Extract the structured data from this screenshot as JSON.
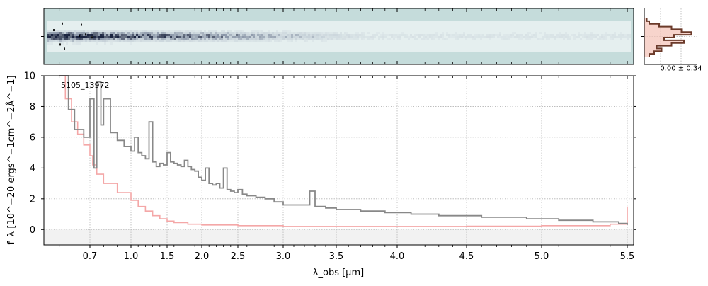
{
  "chart_data": {
    "type": "line",
    "object_label": "5105_13972",
    "xlabel": "λ_obs [μm]",
    "ylabel": "f_λ [10^−20 ergs^−1cm^−2Å^−1]",
    "ylim": [
      -1,
      10
    ],
    "x_axis_scale": "nonlinear (compressed at blue end)",
    "x_ticks": [
      0.7,
      1.0,
      1.5,
      2.0,
      2.5,
      3.0,
      3.5,
      4.0,
      4.5,
      5.0,
      5.5
    ],
    "x_tick_labels": [
      "0.7",
      "1.0",
      "1.5",
      "2.0",
      "2.5",
      "3.0",
      "3.5",
      "4.0",
      "4.5",
      "5.0",
      "5.5"
    ],
    "y_ticks": [
      0,
      2,
      4,
      6,
      8,
      10
    ],
    "y_tick_labels": [
      "0",
      "2",
      "4",
      "6",
      "8",
      "10"
    ],
    "grid": true,
    "series": [
      {
        "color": "#888888",
        "x": [
          0.6,
          0.63,
          0.65,
          0.68,
          0.7,
          0.73,
          0.75,
          0.78,
          0.8,
          0.85,
          0.9,
          0.95,
          1.0,
          1.05,
          1.1,
          1.15,
          1.2,
          1.25,
          1.3,
          1.35,
          1.4,
          1.45,
          1.5,
          1.55,
          1.6,
          1.65,
          1.7,
          1.75,
          1.8,
          1.85,
          1.9,
          1.95,
          2.0,
          2.05,
          2.1,
          2.15,
          2.2,
          2.25,
          2.3,
          2.35,
          2.4,
          2.45,
          2.5,
          2.55,
          2.6,
          2.7,
          2.8,
          2.9,
          3.0,
          3.1,
          3.2,
          3.25,
          3.3,
          3.4,
          3.5,
          3.6,
          3.7,
          3.8,
          3.9,
          4.0,
          4.1,
          4.2,
          4.3,
          4.4,
          4.5,
          4.6,
          4.7,
          4.8,
          4.9,
          5.0,
          5.1,
          5.2,
          5.3,
          5.4,
          5.45,
          5.5
        ],
        "y": [
          10.0,
          7.8,
          6.5,
          6.0,
          8.5,
          4.0,
          9.6,
          6.8,
          8.5,
          6.3,
          5.8,
          5.4,
          5.1,
          6.0,
          5.0,
          4.8,
          4.6,
          7.0,
          4.4,
          4.1,
          4.3,
          4.2,
          5.0,
          4.4,
          4.3,
          4.2,
          4.1,
          4.5,
          4.1,
          3.9,
          3.8,
          3.4,
          3.2,
          4.0,
          3.0,
          2.9,
          3.0,
          2.7,
          4.0,
          2.6,
          2.5,
          2.4,
          2.6,
          2.3,
          2.2,
          2.1,
          2.0,
          1.8,
          1.6,
          1.6,
          1.6,
          2.5,
          1.5,
          1.4,
          1.3,
          1.3,
          1.2,
          1.2,
          1.1,
          1.1,
          1.0,
          1.0,
          0.9,
          0.9,
          0.9,
          0.8,
          0.8,
          0.8,
          0.7,
          0.7,
          0.6,
          0.6,
          0.5,
          0.5,
          0.4,
          0.3
        ]
      },
      {
        "color": "#f4a7a7",
        "x": [
          0.6,
          0.62,
          0.64,
          0.66,
          0.68,
          0.7,
          0.72,
          0.75,
          0.8,
          0.9,
          1.0,
          1.1,
          1.2,
          1.3,
          1.4,
          1.5,
          1.6,
          1.8,
          2.0,
          2.5,
          3.0,
          3.5,
          4.0,
          4.5,
          5.0,
          5.4,
          5.5
        ],
        "y": [
          10.0,
          8.5,
          7.0,
          6.2,
          5.5,
          4.8,
          4.2,
          3.6,
          3.0,
          2.4,
          1.9,
          1.5,
          1.2,
          0.9,
          0.7,
          0.55,
          0.45,
          0.35,
          0.3,
          0.25,
          0.2,
          0.2,
          0.2,
          0.22,
          0.25,
          0.35,
          1.5
        ]
      }
    ],
    "zero_band_y": [
      -1,
      0
    ]
  },
  "inset": {
    "label": "0.00 ± 0.34",
    "profile_color": "#6b3a2a",
    "fill_color": "#f4c2b6",
    "profile": [
      0.05,
      0.1,
      0.3,
      0.55,
      0.75,
      0.95,
      0.6,
      0.4,
      0.8,
      0.55,
      0.25,
      0.35,
      0.2,
      0.1
    ]
  },
  "spectrum2d": {
    "background": "#c5dcdb"
  }
}
